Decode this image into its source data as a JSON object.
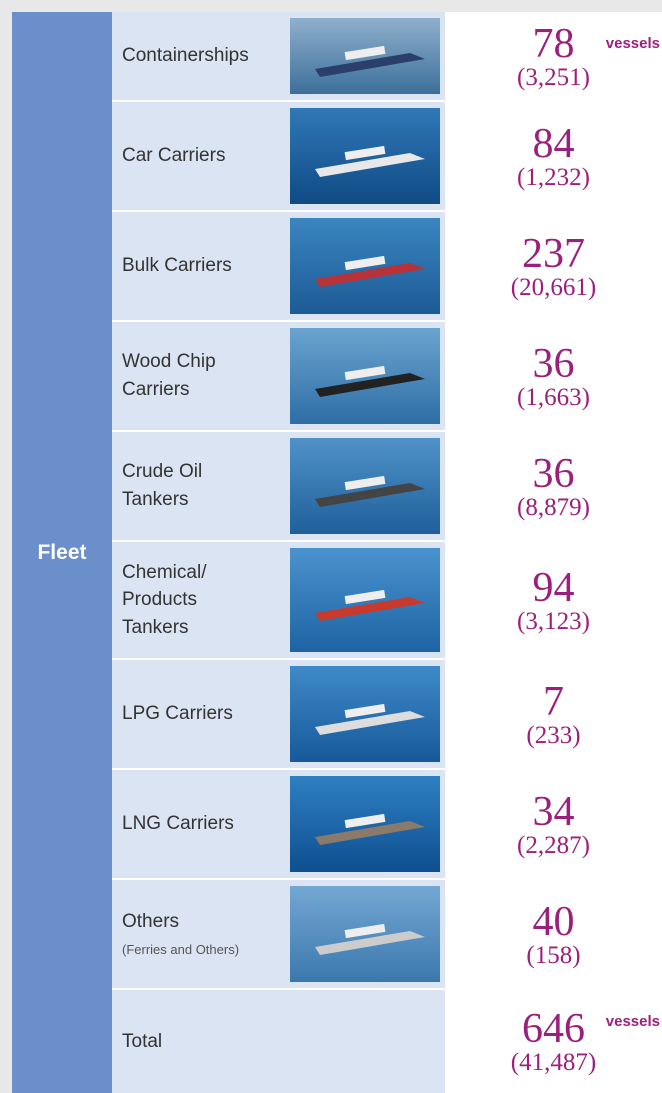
{
  "header": {
    "title": "Fleet"
  },
  "rows": [
    {
      "label": [
        "Containerships"
      ],
      "count": 78,
      "unit": "vessels",
      "capacity": "(3,251)"
    },
    {
      "label": [
        "Car Carriers"
      ],
      "count": 84,
      "capacity": "(1,232)"
    },
    {
      "label": [
        "Bulk Carriers"
      ],
      "count": 237,
      "capacity": "(20,661)"
    },
    {
      "label": [
        "Wood Chip",
        "Carriers"
      ],
      "count": 36,
      "capacity": "(1,663)"
    },
    {
      "label": [
        "Crude Oil",
        "Tankers"
      ],
      "count": 36,
      "capacity": "(8,879)"
    },
    {
      "label": [
        "Chemical/",
        "Products",
        "Tankers"
      ],
      "count": 94,
      "capacity": "(3,123)"
    },
    {
      "label": [
        "LPG Carriers"
      ],
      "count": 7,
      "capacity": "(233)"
    },
    {
      "label": [
        "LNG Carriers"
      ],
      "count": 34,
      "capacity": "(2,287)"
    },
    {
      "label": [
        "Others"
      ],
      "note": "(Ferries and Others)",
      "count": 40,
      "capacity": "(158)"
    }
  ],
  "total": {
    "label": "Total",
    "count": 646,
    "unit": "vessels",
    "capacity": "(41,487)"
  }
}
